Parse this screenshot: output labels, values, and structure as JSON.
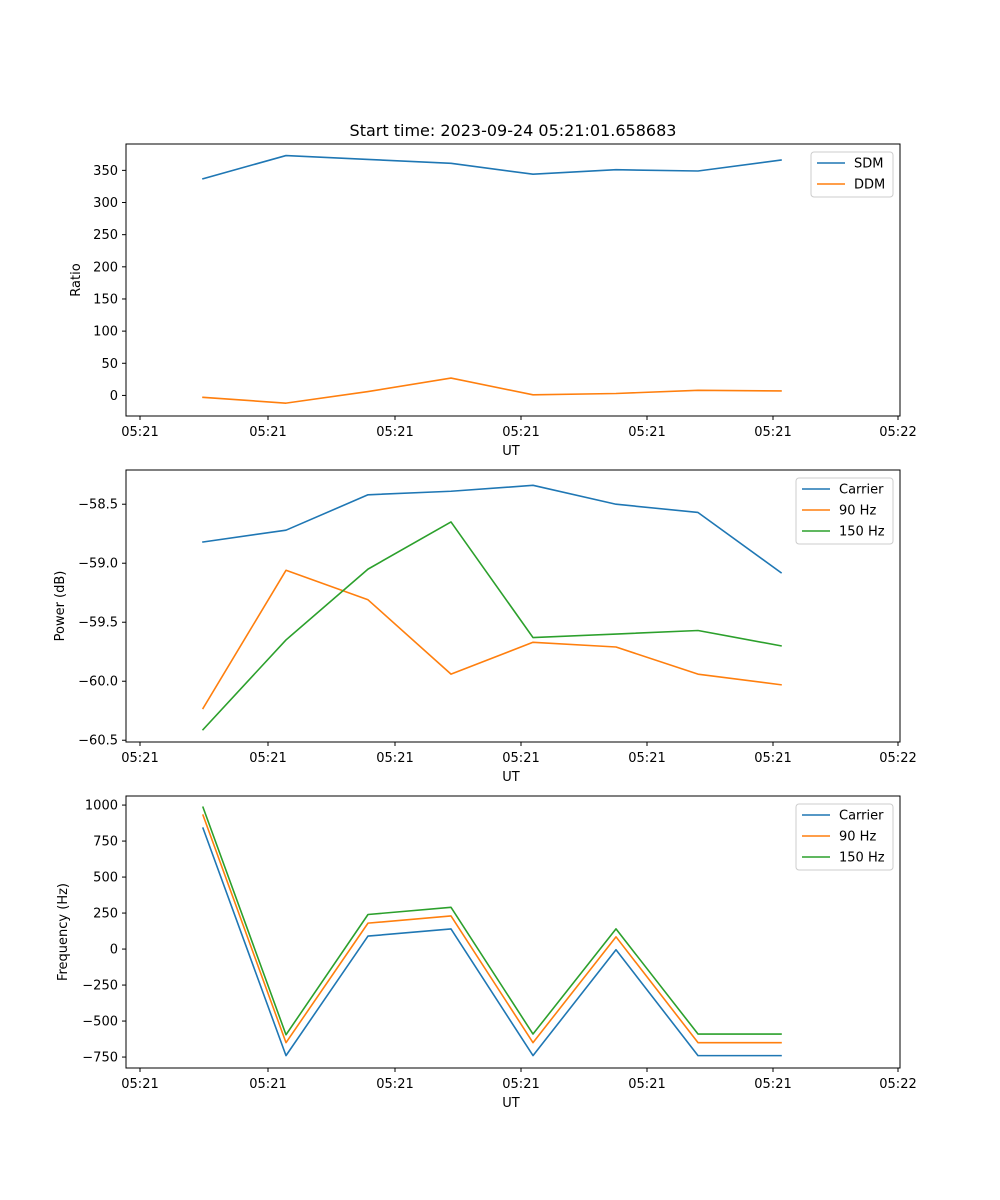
{
  "chart_data": [
    {
      "type": "line",
      "title": "Start time: 2023-09-24 05:21:01.658683",
      "xlabel": "UT",
      "ylabel": "Ratio",
      "x_tick_labels": [
        "05:21",
        "05:21",
        "05:21",
        "05:21",
        "05:21",
        "05:21",
        "05:21"
      ],
      "x_tick_last": "05:22",
      "y_ticks": [
        0,
        50,
        100,
        150,
        200,
        250,
        300,
        350
      ],
      "ylim": [
        -32,
        391
      ],
      "legend_position": "top-right",
      "x": [
        1,
        2,
        3,
        4,
        5,
        6,
        7,
        8
      ],
      "series": [
        {
          "name": "SDM",
          "color": "#1f77b4",
          "values": [
            337,
            373,
            367,
            361,
            344,
            351,
            349,
            366
          ]
        },
        {
          "name": "DDM",
          "color": "#ff7f0e",
          "values": [
            -3,
            -12,
            6,
            27,
            1,
            3,
            8,
            7
          ]
        }
      ]
    },
    {
      "type": "line",
      "title": "",
      "xlabel": "UT",
      "ylabel": "Power (dB)",
      "x_tick_labels": [
        "05:21",
        "05:21",
        "05:21",
        "05:21",
        "05:21",
        "05:21",
        "05:21"
      ],
      "x_tick_last": "05:22",
      "y_ticks": [
        -60.5,
        -60.0,
        -59.5,
        -59.0,
        -58.5
      ],
      "y_tick_labels": [
        "−60.5",
        "−60.0",
        "−59.5",
        "−59.0",
        "−58.5"
      ],
      "ylim": [
        -60.515,
        -58.21
      ],
      "legend_position": "top-right",
      "x": [
        1,
        2,
        3,
        4,
        5,
        6,
        7,
        8
      ],
      "series": [
        {
          "name": "Carrier",
          "color": "#1f77b4",
          "values": [
            -58.82,
            -58.72,
            -58.42,
            -58.39,
            -58.34,
            -58.5,
            -58.57,
            -59.08
          ]
        },
        {
          "name": "90 Hz",
          "color": "#ff7f0e",
          "values": [
            -60.23,
            -59.06,
            -59.31,
            -59.94,
            -59.67,
            -59.71,
            -59.94,
            -60.03
          ]
        },
        {
          "name": "150 Hz",
          "color": "#2ca02c",
          "values": [
            -60.41,
            -59.65,
            -59.05,
            -58.65,
            -59.63,
            -59.6,
            -59.57,
            -59.7
          ]
        }
      ]
    },
    {
      "type": "line",
      "title": "",
      "xlabel": "UT",
      "ylabel": "Frequency (Hz)",
      "x_tick_labels": [
        "05:21",
        "05:21",
        "05:21",
        "05:21",
        "05:21",
        "05:21",
        "05:21"
      ],
      "x_tick_last": "05:22",
      "y_ticks": [
        -750,
        -500,
        -250,
        0,
        250,
        500,
        750,
        1000
      ],
      "y_tick_labels": [
        "−750",
        "−500",
        "−250",
        "0",
        "250",
        "500",
        "750",
        "1000"
      ],
      "ylim": [
        -826,
        1063
      ],
      "legend_position": "top-right",
      "x": [
        1,
        2,
        3,
        4,
        5,
        6,
        7,
        8
      ],
      "series": [
        {
          "name": "Carrier",
          "color": "#1f77b4",
          "values": [
            840,
            -740,
            90,
            140,
            -740,
            -5,
            -740,
            -740
          ]
        },
        {
          "name": "90 Hz",
          "color": "#ff7f0e",
          "values": [
            930,
            -650,
            180,
            230,
            -650,
            85,
            -650,
            -650
          ]
        },
        {
          "name": "150 Hz",
          "color": "#2ca02c",
          "values": [
            985,
            -595,
            240,
            290,
            -590,
            140,
            -590,
            -590
          ]
        }
      ]
    }
  ]
}
